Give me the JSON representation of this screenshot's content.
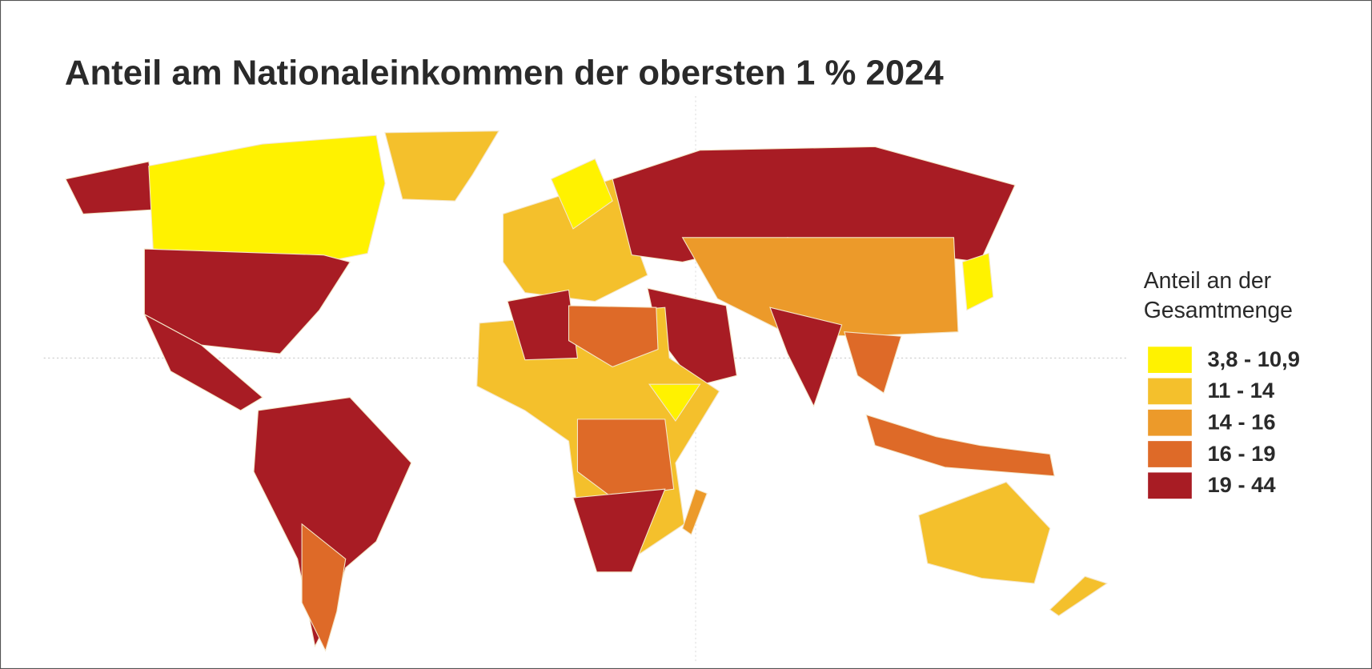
{
  "title": "Anteil am Nationaleinkommen der obersten 1 % 2024",
  "legend": {
    "title_lines": [
      "Anteil an der",
      "Gesamtmenge"
    ],
    "items": [
      {
        "label": "3,8 - 10,9",
        "color": "#fff200"
      },
      {
        "label": "11 - 14",
        "color": "#f4c02c"
      },
      {
        "label": "14 - 16",
        "color": "#ec9a2a"
      },
      {
        "label": "16 - 19",
        "color": "#de6a28"
      },
      {
        "label": "19 - 44",
        "color": "#a81c24"
      }
    ]
  }
}
